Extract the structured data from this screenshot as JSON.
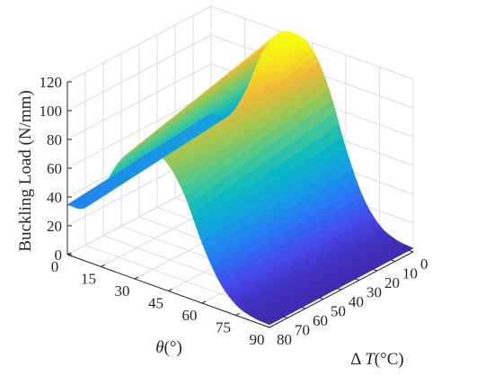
{
  "chart_data": {
    "type": "surface",
    "title": "",
    "colormap": "parula",
    "grid": true,
    "x": {
      "label_prefix": "θ",
      "label_suffix": "(°)",
      "range": [
        0,
        90
      ],
      "ticks": [
        0,
        15,
        30,
        45,
        60,
        75,
        90
      ]
    },
    "y": {
      "label_prefix": "Δ ",
      "label_var": "T",
      "label_suffix": "(°C)",
      "range": [
        0,
        80
      ],
      "ticks": [
        0,
        10,
        20,
        30,
        40,
        50,
        60,
        70,
        80
      ]
    },
    "z": {
      "label": "Buckling Load (N/mm)",
      "range": [
        0,
        120
      ],
      "ticks": [
        0,
        20,
        40,
        60,
        80,
        100,
        120
      ]
    },
    "theta_profile": {
      "theta": [
        0,
        7.5,
        15,
        22.5,
        30,
        37.5,
        45,
        52.5,
        60,
        67.5,
        75,
        82.5,
        90
      ],
      "load_at_dT0": [
        45.5,
        48,
        69,
        100,
        118,
        122,
        115.5,
        92,
        55,
        26,
        10,
        4,
        2.5
      ]
    },
    "load_drop_per_degC": 0.03
  }
}
